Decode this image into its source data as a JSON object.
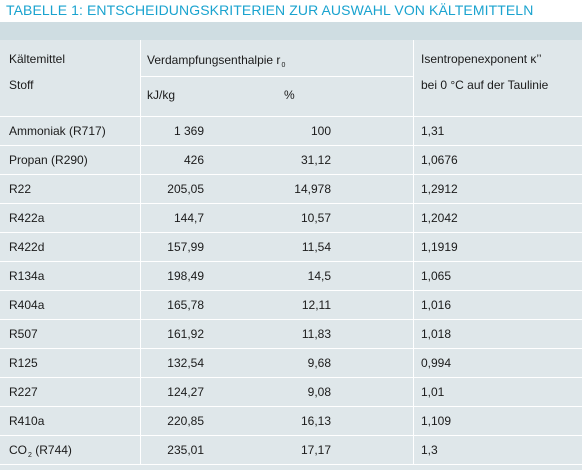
{
  "title": "TABELLE 1: ENTSCHEIDUNGSKRITERIEN ZUR AUSWAHL VON KÄLTEMITTELN",
  "header": {
    "col1_line1": "Kältemittel",
    "col1_line2": "Stoff",
    "col2_main": "Verdampfungsenthalpie r",
    "col2_sub": "0",
    "col2_unit1": "kJ/kg",
    "col2_unit2": "%",
    "col4_line1": "Isentropenexponent κ’’",
    "col4_line2": "bei 0 °C auf der Taulinie"
  },
  "rows": [
    {
      "name": "Ammoniak (R717)",
      "kjkg": "1 369",
      "pct": "100",
      "kappa": "1,31"
    },
    {
      "name": "Propan (R290)",
      "kjkg": "426",
      "pct": "31,12",
      "kappa": "1,0676"
    },
    {
      "name": "R22",
      "kjkg": "205,05",
      "pct": "14,978",
      "kappa": "1,2912"
    },
    {
      "name": "R422a",
      "kjkg": "144,7",
      "pct": "10,57",
      "kappa": "1,2042"
    },
    {
      "name": "R422d",
      "kjkg": "157,99",
      "pct": "11,54",
      "kappa": "1,1919"
    },
    {
      "name": "R134a",
      "kjkg": "198,49",
      "pct": "14,5",
      "kappa": "1,065"
    },
    {
      "name": "R404a",
      "kjkg": "165,78",
      "pct": "12,11",
      "kappa": "1,016"
    },
    {
      "name": "R507",
      "kjkg": "161,92",
      "pct": "11,83",
      "kappa": "1,018"
    },
    {
      "name": "R125",
      "kjkg": "132,54",
      "pct": "9,68",
      "kappa": "0,994"
    },
    {
      "name": "R227",
      "kjkg": "124,27",
      "pct": "9,08",
      "kappa": "1,01"
    },
    {
      "name": "R410a",
      "kjkg": "220,85",
      "pct": "16,13",
      "kappa": "1,109"
    },
    {
      "name_main": "CO",
      "name_sub": "2",
      "name_rest": " (R744)",
      "kjkg": "235,01",
      "pct": "17,17",
      "kappa": "1,3"
    }
  ]
}
